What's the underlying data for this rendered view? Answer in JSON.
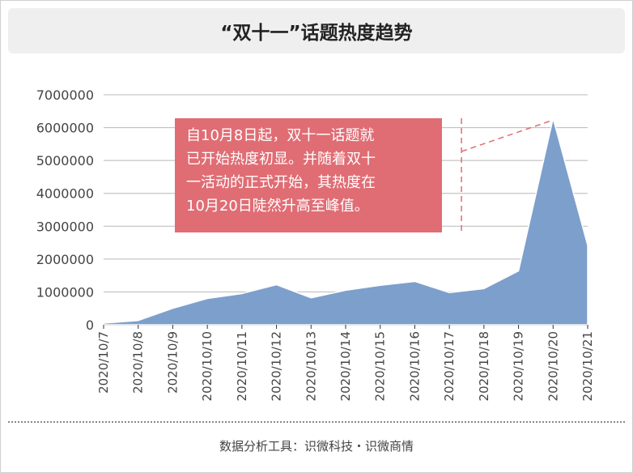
{
  "chart_data": {
    "type": "area",
    "title": "“双十一”话题热度趋势",
    "categories": [
      "2020/10/7",
      "2020/10/8",
      "2020/10/9",
      "2020/10/10",
      "2020/10/11",
      "2020/10/12",
      "2020/10/13",
      "2020/10/14",
      "2020/10/15",
      "2020/10/16",
      "2020/10/17",
      "2020/10/18",
      "2020/10/19",
      "2020/10/20",
      "2020/10/21"
    ],
    "series": [
      {
        "values": [
          50000,
          130000,
          500000,
          800000,
          950000,
          1220000,
          820000,
          1050000,
          1200000,
          1320000,
          980000,
          1100000,
          1640000,
          6280000,
          2420000
        ]
      }
    ],
    "yticks": [
      "0",
      "1000000",
      "2000000",
      "3000000",
      "4000000",
      "5000000",
      "6000000",
      "7000000"
    ],
    "ylim": [
      0,
      7000000
    ],
    "grid": "horizontal",
    "colors": {
      "area": "#7d9fcc",
      "annotation_bg": "#e06d74",
      "annotation_line": "#e06d74"
    }
  },
  "annotation": {
    "lines": [
      "自10月8日起，双十一话题就",
      "已开始热度初显。并随着双十",
      "一活动的正式开始，其热度在",
      "10月20日陡然升高至峰值。"
    ]
  },
  "footer": {
    "text": "数据分析工具：识微科技・识微商情"
  }
}
